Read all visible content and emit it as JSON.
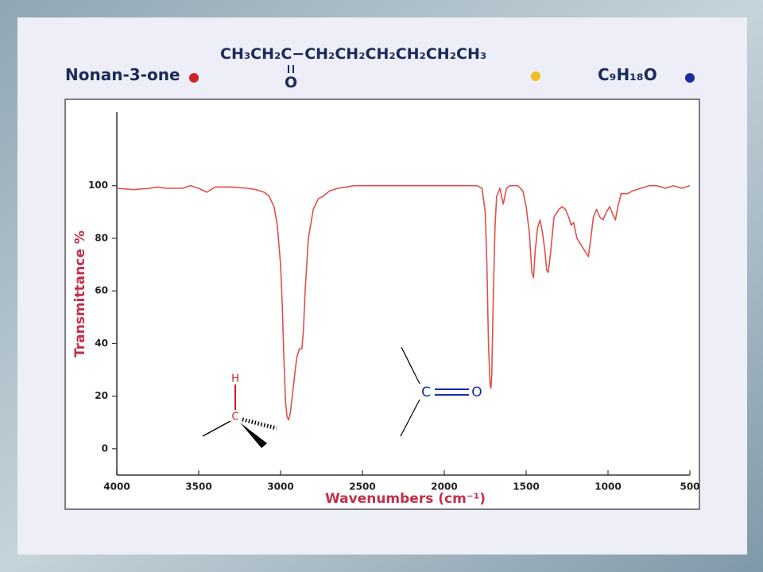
{
  "chart_data": {
    "type": "line",
    "title": "Nonan-3-one",
    "formula": "CH₃CH₂C−CH₂CH₂CH₂CH₂CH₂CH₃",
    "formula_oxygen": "O",
    "molecular_formula": "C₉H₁₈O",
    "x_label": "Wavenumbers (cm⁻¹)",
    "y_label": "Transmittance %",
    "annotations": [
      "H",
      "C",
      "C",
      "O"
    ],
    "color": "#e0504a",
    "xlim": [
      4000,
      500
    ],
    "ylim": [
      -10,
      128
    ],
    "xticks": [
      4000,
      3500,
      3000,
      2500,
      2000,
      1500,
      1000,
      500
    ],
    "yticks": [
      0,
      20,
      40,
      60,
      80,
      100
    ],
    "x": [
      4000,
      3900,
      3800,
      3750,
      3700,
      3600,
      3550,
      3500,
      3450,
      3400,
      3300,
      3200,
      3150,
      3100,
      3070,
      3040,
      3020,
      3000,
      2990,
      2980,
      2970,
      2960,
      2950,
      2940,
      2925,
      2910,
      2900,
      2885,
      2870,
      2860,
      2850,
      2830,
      2800,
      2770,
      2740,
      2700,
      2650,
      2600,
      2550,
      2500,
      2300,
      2200,
      2100,
      2000,
      1900,
      1800,
      1770,
      1750,
      1740,
      1730,
      1720,
      1715,
      1710,
      1700,
      1690,
      1680,
      1660,
      1640,
      1620,
      1600,
      1550,
      1520,
      1500,
      1480,
      1465,
      1455,
      1445,
      1430,
      1415,
      1400,
      1385,
      1375,
      1365,
      1350,
      1330,
      1300,
      1280,
      1260,
      1240,
      1225,
      1210,
      1190,
      1170,
      1140,
      1120,
      1105,
      1090,
      1070,
      1050,
      1030,
      1010,
      990,
      970,
      955,
      940,
      920,
      880,
      850,
      800,
      750,
      700,
      650,
      600,
      550,
      500
    ],
    "values": [
      99,
      98.5,
      99,
      99.5,
      99,
      99,
      100,
      99,
      97.5,
      99.5,
      99.5,
      99,
      98.5,
      97.5,
      96,
      92,
      85,
      70,
      55,
      35,
      18,
      12,
      11,
      14,
      22,
      30,
      35,
      38,
      38,
      45,
      60,
      80,
      91,
      95,
      96,
      98,
      99,
      99.5,
      100,
      100,
      100,
      100,
      100,
      100,
      100,
      100,
      99,
      90,
      70,
      40,
      24,
      23,
      28,
      60,
      85,
      96,
      99,
      93,
      99,
      100,
      100,
      98,
      92,
      82,
      67,
      65,
      75,
      84,
      87,
      82,
      75,
      68,
      67,
      75,
      88,
      91,
      92,
      91,
      88,
      85,
      86,
      80,
      78,
      75,
      73,
      80,
      88,
      91,
      88,
      87,
      90,
      92,
      89,
      87,
      92,
      97,
      97,
      98,
      99,
      100,
      100,
      99,
      100,
      99,
      100
    ]
  }
}
